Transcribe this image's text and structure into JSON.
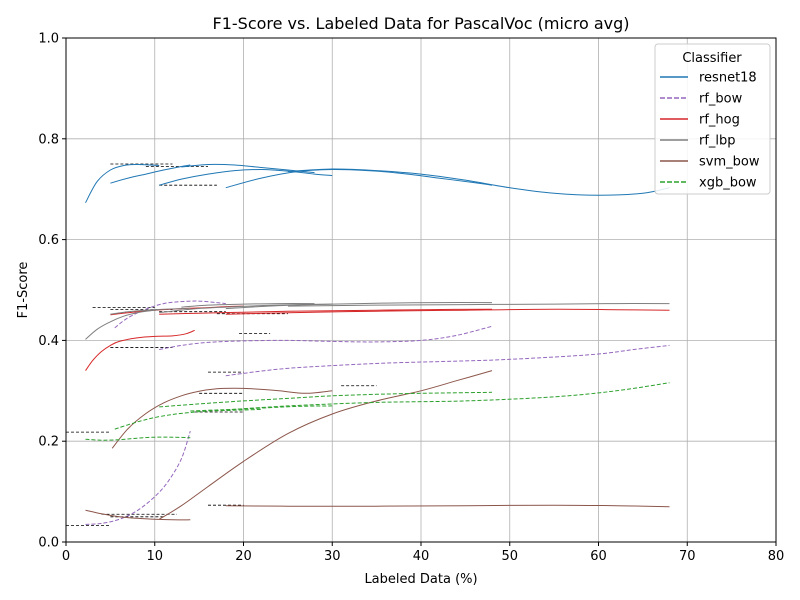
{
  "chart_data": {
    "type": "line",
    "title": "F1-Score vs. Labeled Data for PascalVoc (micro avg)",
    "xlabel": "Labeled Data (%)",
    "ylabel": "F1-Score",
    "xlim": [
      0,
      80
    ],
    "ylim": [
      0,
      1
    ],
    "xticks": [
      "0",
      "10",
      "20",
      "30",
      "40",
      "50",
      "60",
      "70",
      "80"
    ],
    "yticks": [
      "0.0",
      "0.2",
      "0.4",
      "0.6",
      "0.8",
      "1.0"
    ],
    "grid": true,
    "legend": {
      "title": "Classifier",
      "placement": "top-right"
    },
    "series": [
      {
        "name": "resnet18",
        "color": "#1f77b4",
        "style": "solid",
        "curves": [
          {
            "x": [
              2.2,
              3.5,
              5,
              6.5,
              8,
              9.5,
              10.5
            ],
            "y": [
              0.673,
              0.715,
              0.738,
              0.747,
              0.749,
              0.748,
              0.747
            ]
          },
          {
            "x": [
              5,
              7,
              9,
              11,
              13,
              14
            ],
            "y": [
              0.712,
              0.722,
              0.73,
              0.738,
              0.745,
              0.748
            ]
          },
          {
            "x": [
              10.5,
              13,
              16,
              19,
              22,
              25,
              28,
              30
            ],
            "y": [
              0.708,
              0.72,
              0.73,
              0.737,
              0.739,
              0.736,
              0.73,
              0.727
            ]
          },
          {
            "x": [
              13,
              16,
              19,
              22,
              25,
              28
            ],
            "y": [
              0.744,
              0.749,
              0.748,
              0.743,
              0.738,
              0.733
            ]
          },
          {
            "x": [
              18,
              22,
              26,
              30,
              34,
              38,
              42,
              46,
              48
            ],
            "y": [
              0.703,
              0.722,
              0.735,
              0.739,
              0.737,
              0.731,
              0.722,
              0.713,
              0.708
            ]
          },
          {
            "x": [
              25,
              30,
              35,
              40,
              45,
              50,
              55,
              60,
              65,
              68
            ],
            "y": [
              0.735,
              0.74,
              0.737,
              0.73,
              0.718,
              0.703,
              0.692,
              0.688,
              0.692,
              0.703
            ]
          }
        ]
      },
      {
        "name": "rf_bow",
        "color": "#9467bd",
        "style": "dashed",
        "curves": [
          {
            "x": [
              5.5,
              7,
              9,
              11,
              13,
              15,
              17,
              18
            ],
            "y": [
              0.425,
              0.445,
              0.462,
              0.473,
              0.477,
              0.478,
              0.475,
              0.473
            ]
          },
          {
            "x": [
              10.5,
              13,
              16,
              20,
              25,
              30,
              35,
              40,
              44,
              48
            ],
            "y": [
              0.382,
              0.39,
              0.396,
              0.399,
              0.4,
              0.398,
              0.397,
              0.4,
              0.41,
              0.428
            ]
          },
          {
            "x": [
              18,
              24,
              30,
              36,
              42,
              48,
              54,
              60,
              64,
              68
            ],
            "y": [
              0.33,
              0.343,
              0.35,
              0.355,
              0.358,
              0.361,
              0.366,
              0.373,
              0.382,
              0.39
            ]
          },
          {
            "x": [
              2.2,
              4,
              6,
              8,
              10,
              11.5,
              13,
              14
            ],
            "y": [
              0.035,
              0.037,
              0.045,
              0.062,
              0.09,
              0.12,
              0.165,
              0.22
            ]
          }
        ]
      },
      {
        "name": "rf_hog",
        "color": "#d62728",
        "style": "solid",
        "curves": [
          {
            "x": [
              2.2,
              3,
              4,
              5,
              6,
              8,
              10,
              12,
              13.5,
              14.5
            ],
            "y": [
              0.34,
              0.36,
              0.378,
              0.39,
              0.398,
              0.405,
              0.408,
              0.409,
              0.413,
              0.42
            ]
          },
          {
            "x": [
              5,
              7,
              10,
              13,
              16,
              18,
              20
            ],
            "y": [
              0.451,
              0.455,
              0.46,
              0.463,
              0.465,
              0.467,
              0.468
            ]
          },
          {
            "x": [
              10.5,
              15,
              20,
              25,
              30,
              35,
              40,
              48
            ],
            "y": [
              0.452,
              0.454,
              0.456,
              0.458,
              0.459,
              0.46,
              0.461,
              0.462
            ]
          },
          {
            "x": [
              18,
              25,
              35,
              45,
              55,
              62,
              68
            ],
            "y": [
              0.452,
              0.455,
              0.458,
              0.46,
              0.462,
              0.461,
              0.46
            ]
          }
        ]
      },
      {
        "name": "rf_lbp",
        "color": "#7f7f7f",
        "style": "solid",
        "curves": [
          {
            "x": [
              2.2,
              3.5,
              5,
              6.5,
              8,
              9.5,
              10.5
            ],
            "y": [
              0.402,
              0.422,
              0.437,
              0.448,
              0.455,
              0.459,
              0.461
            ]
          },
          {
            "x": [
              5,
              7,
              9,
              11,
              13,
              14
            ],
            "y": [
              0.452,
              0.457,
              0.46,
              0.462,
              0.463,
              0.464
            ]
          },
          {
            "x": [
              10.5,
              14,
              18,
              22,
              26,
              30
            ],
            "y": [
              0.455,
              0.462,
              0.466,
              0.469,
              0.471,
              0.472
            ]
          },
          {
            "x": [
              13,
              16,
              20,
              24,
              28
            ],
            "y": [
              0.466,
              0.47,
              0.472,
              0.473,
              0.473
            ]
          },
          {
            "x": [
              18,
              24,
              30,
              36,
              42,
              48
            ],
            "y": [
              0.463,
              0.469,
              0.472,
              0.474,
              0.475,
              0.475
            ]
          },
          {
            "x": [
              25,
              35,
              45,
              55,
              62,
              68
            ],
            "y": [
              0.468,
              0.47,
              0.471,
              0.472,
              0.473,
              0.473
            ]
          }
        ]
      },
      {
        "name": "svm_bow",
        "color": "#8c564b",
        "style": "solid",
        "curves": [
          {
            "x": [
              5.2,
              7,
              9,
              11,
              13,
              15,
              17,
              19,
              21,
              24,
              27,
              30
            ],
            "y": [
              0.186,
              0.225,
              0.255,
              0.276,
              0.29,
              0.299,
              0.304,
              0.305,
              0.304,
              0.3,
              0.295,
              0.3
            ]
          },
          {
            "x": [
              10.5,
              13,
              16,
              20,
              25,
              30,
              35,
              40,
              44,
              48
            ],
            "y": [
              0.045,
              0.072,
              0.11,
              0.16,
              0.215,
              0.254,
              0.28,
              0.3,
              0.32,
              0.34
            ]
          },
          {
            "x": [
              2.2,
              4,
              6,
              8,
              10,
              12,
              14
            ],
            "y": [
              0.063,
              0.056,
              0.05,
              0.047,
              0.045,
              0.044,
              0.044
            ]
          },
          {
            "x": [
              18,
              25,
              35,
              45,
              55,
              62,
              68
            ],
            "y": [
              0.072,
              0.071,
              0.071,
              0.072,
              0.073,
              0.072,
              0.07
            ]
          }
        ]
      },
      {
        "name": "xgb_bow",
        "color": "#2ca02c",
        "style": "dashed",
        "curves": [
          {
            "x": [
              2.2,
              4,
              6,
              8,
              10,
              12,
              14
            ],
            "y": [
              0.204,
              0.202,
              0.203,
              0.206,
              0.208,
              0.208,
              0.207
            ]
          },
          {
            "x": [
              5.5,
              8,
              10,
              12,
              14,
              16,
              18,
              20,
              22
            ],
            "y": [
              0.224,
              0.238,
              0.247,
              0.253,
              0.257,
              0.26,
              0.261,
              0.262,
              0.263
            ]
          },
          {
            "x": [
              10.5,
              15,
              20,
              25,
              30,
              35,
              40,
              48
            ],
            "y": [
              0.268,
              0.274,
              0.28,
              0.285,
              0.29,
              0.293,
              0.295,
              0.297
            ]
          },
          {
            "x": [
              14,
              20,
              26,
              30
            ],
            "y": [
              0.26,
              0.264,
              0.269,
              0.27
            ]
          },
          {
            "x": [
              18,
              25,
              35,
              45,
              55,
              62,
              68
            ],
            "y": [
              0.262,
              0.27,
              0.277,
              0.28,
              0.288,
              0.3,
              0.316
            ]
          }
        ]
      }
    ],
    "reference_lines": [
      {
        "y": 0.75,
        "x": [
          5,
          12
        ]
      },
      {
        "y": 0.745,
        "x": [
          9,
          16
        ]
      },
      {
        "y": 0.708,
        "x": [
          10.5,
          17
        ]
      },
      {
        "y": 0.465,
        "x": [
          3,
          10
        ]
      },
      {
        "y": 0.461,
        "x": [
          5,
          12
        ]
      },
      {
        "y": 0.457,
        "x": [
          10.5,
          18
        ]
      },
      {
        "y": 0.453,
        "x": [
          17,
          25
        ]
      },
      {
        "y": 0.414,
        "x": [
          19.5,
          23
        ]
      },
      {
        "y": 0.386,
        "x": [
          5,
          12
        ]
      },
      {
        "y": 0.337,
        "x": [
          16,
          20
        ]
      },
      {
        "y": 0.31,
        "x": [
          31,
          35
        ]
      },
      {
        "y": 0.295,
        "x": [
          15,
          20
        ]
      },
      {
        "y": 0.258,
        "x": [
          14.5,
          20
        ]
      },
      {
        "y": 0.218,
        "x": [
          0,
          5
        ]
      },
      {
        "y": 0.073,
        "x": [
          16,
          20
        ]
      },
      {
        "y": 0.055,
        "x": [
          4,
          12.5
        ]
      },
      {
        "y": 0.05,
        "x": [
          5,
          11
        ]
      },
      {
        "y": 0.033,
        "x": [
          0,
          5
        ]
      }
    ]
  }
}
